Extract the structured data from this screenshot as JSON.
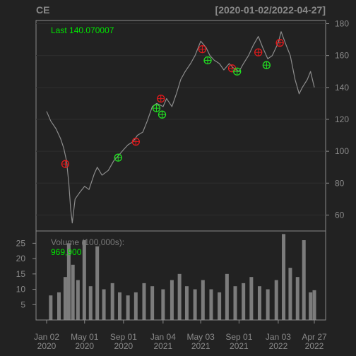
{
  "header": {
    "symbol": "CE",
    "date_range": "[2020-01-02/2022-04-27]"
  },
  "price_panel": {
    "last_label": "Last 140.070007"
  },
  "volume_panel": {
    "label": "Volume (100,000s):",
    "value": "969,900"
  },
  "colors": {
    "background": "#222222",
    "panel_border": "#8a8a8a",
    "price_line": "#8c8c8c",
    "volume_bar": "#8c8c8c",
    "accent_text": "#00e600",
    "sell_marker": "#e31a1c",
    "buy_marker": "#22dd22"
  },
  "chart_data": [
    {
      "type": "line",
      "title": "CE",
      "subtitle": "[2020-01-02/2022-04-27]",
      "y_axis_side": "right",
      "ylim": [
        50,
        182
      ],
      "y_ticks": [
        60,
        80,
        100,
        120,
        140,
        160,
        180
      ],
      "x_ticks": [
        {
          "top": "Jan 02",
          "bottom": "2020",
          "date": "2020-01-02"
        },
        {
          "top": "May 01",
          "bottom": "2020",
          "date": "2020-05-01"
        },
        {
          "top": "Sep 01",
          "bottom": "2020",
          "date": "2020-09-01"
        },
        {
          "top": "Jan 04",
          "bottom": "2021",
          "date": "2021-01-04"
        },
        {
          "top": "May 03",
          "bottom": "2021",
          "date": "2021-05-03"
        },
        {
          "top": "Sep 01",
          "bottom": "2021",
          "date": "2021-09-01"
        },
        {
          "top": "Jan 03",
          "bottom": "2022",
          "date": "2022-01-03"
        },
        {
          "top": "Apr 27",
          "bottom": "2022",
          "date": "2022-04-27"
        }
      ],
      "series": [
        {
          "name": "Close",
          "points": [
            [
              "2020-01-02",
              125
            ],
            [
              "2020-01-15",
              119
            ],
            [
              "2020-02-01",
              114
            ],
            [
              "2020-02-15",
              108
            ],
            [
              "2020-02-25",
              102
            ],
            [
              "2020-03-05",
              94
            ],
            [
              "2020-03-12",
              80
            ],
            [
              "2020-03-18",
              64
            ],
            [
              "2020-03-23",
              55
            ],
            [
              "2020-04-01",
              70
            ],
            [
              "2020-04-15",
              74
            ],
            [
              "2020-05-01",
              78
            ],
            [
              "2020-05-15",
              76
            ],
            [
              "2020-06-01",
              86
            ],
            [
              "2020-06-10",
              90
            ],
            [
              "2020-06-25",
              85
            ],
            [
              "2020-07-15",
              88
            ],
            [
              "2020-08-01",
              94
            ],
            [
              "2020-08-15",
              97
            ],
            [
              "2020-09-01",
              101
            ],
            [
              "2020-09-15",
              104
            ],
            [
              "2020-10-01",
              106
            ],
            [
              "2020-10-15",
              110
            ],
            [
              "2020-11-01",
              112
            ],
            [
              "2020-11-15",
              119
            ],
            [
              "2020-12-01",
              128
            ],
            [
              "2020-12-15",
              130
            ],
            [
              "2021-01-04",
              128
            ],
            [
              "2021-01-15",
              133
            ],
            [
              "2021-02-01",
              128
            ],
            [
              "2021-02-15",
              136
            ],
            [
              "2021-03-01",
              145
            ],
            [
              "2021-03-15",
              150
            ],
            [
              "2021-04-01",
              155
            ],
            [
              "2021-04-15",
              160
            ],
            [
              "2021-05-03",
              169
            ],
            [
              "2021-05-20",
              165
            ],
            [
              "2021-06-01",
              160
            ],
            [
              "2021-06-15",
              157
            ],
            [
              "2021-07-01",
              155
            ],
            [
              "2021-07-15",
              151
            ],
            [
              "2021-08-01",
              155
            ],
            [
              "2021-08-15",
              152
            ],
            [
              "2021-09-01",
              150
            ],
            [
              "2021-09-15",
              155
            ],
            [
              "2021-10-01",
              160
            ],
            [
              "2021-10-15",
              166
            ],
            [
              "2021-11-01",
              172
            ],
            [
              "2021-11-15",
              165
            ],
            [
              "2021-12-01",
              158
            ],
            [
              "2021-12-15",
              160
            ],
            [
              "2022-01-03",
              168
            ],
            [
              "2022-01-12",
              175
            ],
            [
              "2022-01-25",
              168
            ],
            [
              "2022-02-10",
              160
            ],
            [
              "2022-02-25",
              145
            ],
            [
              "2022-03-10",
              136
            ],
            [
              "2022-03-20",
              140
            ],
            [
              "2022-04-05",
              145
            ],
            [
              "2022-04-15",
              150
            ],
            [
              "2022-04-27",
              140.07
            ]
          ]
        }
      ],
      "sell_signals": [
        [
          "2020-03-01",
          92
        ],
        [
          "2020-10-10",
          106
        ],
        [
          "2020-12-28",
          133
        ],
        [
          "2021-05-08",
          164
        ],
        [
          "2021-08-10",
          152
        ],
        [
          "2021-11-01",
          162
        ],
        [
          "2022-01-08",
          168
        ]
      ],
      "buy_signals": [
        [
          "2020-08-15",
          96
        ],
        [
          "2020-12-14",
          127
        ],
        [
          "2021-01-01",
          123
        ],
        [
          "2021-05-25",
          157
        ],
        [
          "2021-08-26",
          150
        ],
        [
          "2021-11-27",
          154
        ]
      ]
    },
    {
      "type": "bar",
      "ylabel": "Volume (100,000s):",
      "ylim": [
        0,
        29
      ],
      "y_ticks": [
        5,
        10,
        15,
        20,
        25
      ],
      "points": [
        [
          "2020-01-15",
          8
        ],
        [
          "2020-02-10",
          9
        ],
        [
          "2020-03-01",
          14
        ],
        [
          "2020-03-12",
          25
        ],
        [
          "2020-03-25",
          18
        ],
        [
          "2020-04-10",
          13
        ],
        [
          "2020-04-30",
          26
        ],
        [
          "2020-05-20",
          11
        ],
        [
          "2020-06-10",
          24
        ],
        [
          "2020-07-01",
          10
        ],
        [
          "2020-07-28",
          12
        ],
        [
          "2020-08-20",
          9
        ],
        [
          "2020-09-15",
          8
        ],
        [
          "2020-10-10",
          9
        ],
        [
          "2020-11-05",
          12
        ],
        [
          "2020-12-01",
          11
        ],
        [
          "2021-01-04",
          10
        ],
        [
          "2021-02-01",
          13
        ],
        [
          "2021-02-25",
          15
        ],
        [
          "2021-03-20",
          11
        ],
        [
          "2021-04-15",
          10
        ],
        [
          "2021-05-10",
          13
        ],
        [
          "2021-06-05",
          10
        ],
        [
          "2021-07-01",
          9
        ],
        [
          "2021-07-25",
          15
        ],
        [
          "2021-08-20",
          11
        ],
        [
          "2021-09-15",
          12
        ],
        [
          "2021-10-10",
          14
        ],
        [
          "2021-11-05",
          11
        ],
        [
          "2021-12-01",
          10
        ],
        [
          "2021-12-28",
          13
        ],
        [
          "2022-01-20",
          28
        ],
        [
          "2022-02-10",
          17
        ],
        [
          "2022-03-05",
          14
        ],
        [
          "2022-03-25",
          26
        ],
        [
          "2022-04-15",
          9
        ],
        [
          "2022-04-27",
          9.699
        ]
      ]
    }
  ]
}
